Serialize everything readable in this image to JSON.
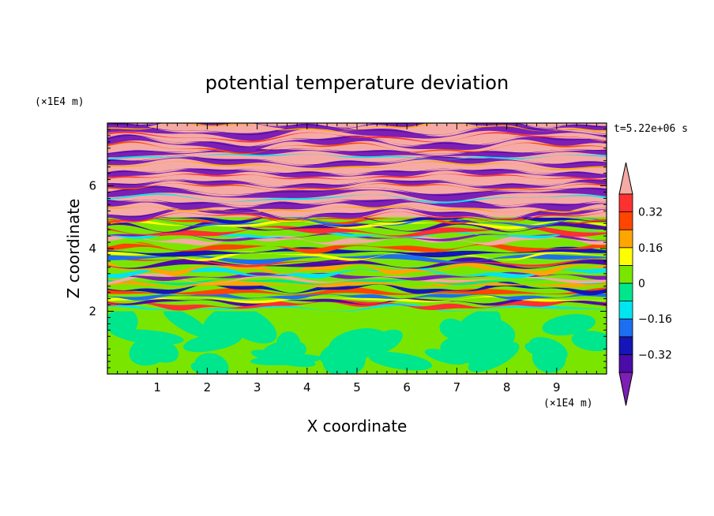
{
  "chart_data": {
    "type": "heatmap",
    "title": "potential temperature deviation",
    "xlabel": "X coordinate",
    "ylabel": "Z coordinate",
    "x_unit": "(×1E4 m)",
    "y_unit": "(×1E4 m)",
    "time_label": "t=5.22e+06 s",
    "xlim": [
      0,
      10
    ],
    "ylim": [
      0,
      8
    ],
    "x_ticks": [
      1,
      2,
      3,
      4,
      5,
      6,
      7,
      8,
      9
    ],
    "y_ticks": [
      2,
      4,
      6
    ],
    "x_tick_labels": [
      "1",
      "2",
      "3",
      "4",
      "5",
      "6",
      "7",
      "8",
      "9"
    ],
    "y_tick_labels": [
      "2",
      "4",
      "6"
    ],
    "colorbar": {
      "levels": [
        -0.4,
        -0.32,
        -0.24,
        -0.16,
        -0.08,
        0,
        0.08,
        0.16,
        0.24,
        0.32,
        0.4
      ],
      "colors": [
        "#7d1fb4",
        "#4a0ca8",
        "#1515b8",
        "#1e6ef0",
        "#00e6f0",
        "#00e68c",
        "#7ae600",
        "#ffff00",
        "#ffa500",
        "#ff4500",
        "#ff3030",
        "#f5aaa5"
      ],
      "tick_values": [
        -0.32,
        -0.16,
        0,
        0.16,
        0.32
      ],
      "tick_labels": [
        "−0.32",
        "−0.16",
        "0",
        "0.16",
        "0.32"
      ],
      "extend": "both"
    },
    "regions": {
      "lower_layer": {
        "z_range": [
          0,
          2
        ],
        "dominant_values": [
          0.0,
          0.04
        ]
      },
      "mixing_layer": {
        "z_range": [
          2,
          5
        ],
        "value_range": [
          -0.4,
          0.4
        ]
      },
      "upper_layer": {
        "z_range": [
          5,
          8
        ],
        "dominant_values": [
          -0.4,
          0.4
        ]
      }
    }
  }
}
